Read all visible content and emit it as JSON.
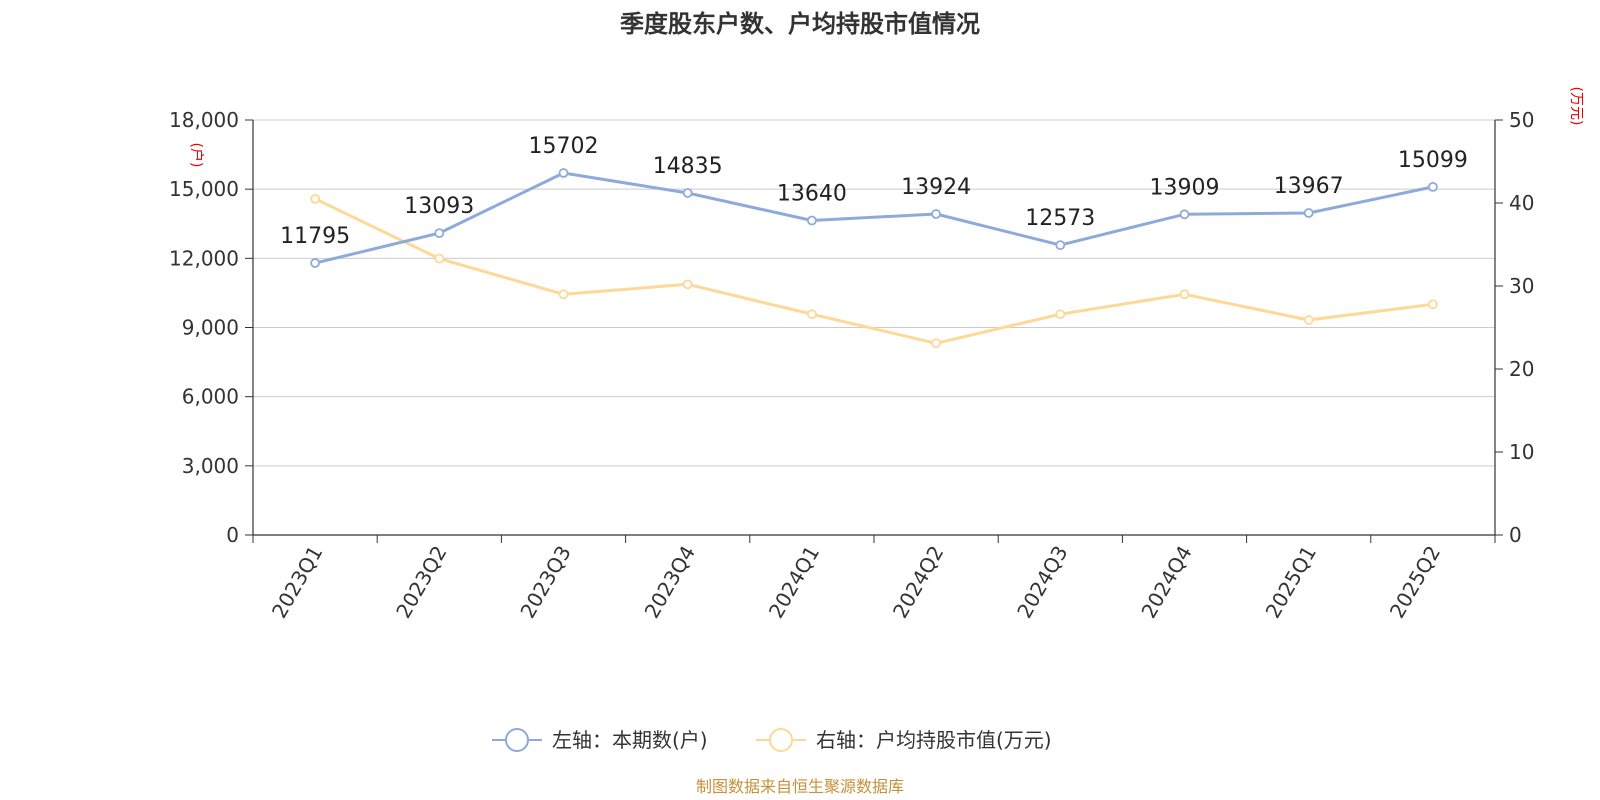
{
  "chart_data": {
    "type": "line",
    "title": "季度股东户数、户均持股市值情况",
    "categories": [
      "2023Q1",
      "2023Q2",
      "2023Q3",
      "2023Q4",
      "2024Q1",
      "2024Q2",
      "2024Q3",
      "2024Q4",
      "2025Q1",
      "2025Q2"
    ],
    "left_axis": {
      "unit": "(户)",
      "range": [
        0,
        18000
      ],
      "ticks": [
        "0",
        "3,000",
        "6,000",
        "9,000",
        "12,000",
        "15,000",
        "18,000"
      ],
      "tick_values": [
        0,
        3000,
        6000,
        9000,
        12000,
        15000,
        18000
      ]
    },
    "right_axis": {
      "unit": "(万元)",
      "range": [
        0,
        50
      ],
      "ticks": [
        "0",
        "10",
        "20",
        "30",
        "40",
        "50"
      ],
      "tick_values": [
        0,
        10,
        20,
        30,
        40,
        50
      ]
    },
    "series": [
      {
        "name": "左轴：本期数(户)",
        "axis": "left",
        "color": "#8eaadb",
        "values": [
          11795,
          13093,
          15702,
          14835,
          13640,
          13924,
          12573,
          13909,
          13967,
          15099
        ],
        "labels": [
          "11795",
          "13093",
          "15702",
          "14835",
          "13640",
          "13924",
          "12573",
          "13909",
          "13967",
          "15099"
        ]
      },
      {
        "name": "右轴：户均持股市值(万元)",
        "axis": "right",
        "color": "#fdd896",
        "values": [
          40.5,
          33.3,
          29.0,
          30.2,
          26.6,
          23.1,
          26.6,
          29.0,
          25.9,
          27.8
        ]
      }
    ],
    "grid": true,
    "legend": "bottom-center"
  },
  "source": "制图数据来自恒生聚源数据库"
}
